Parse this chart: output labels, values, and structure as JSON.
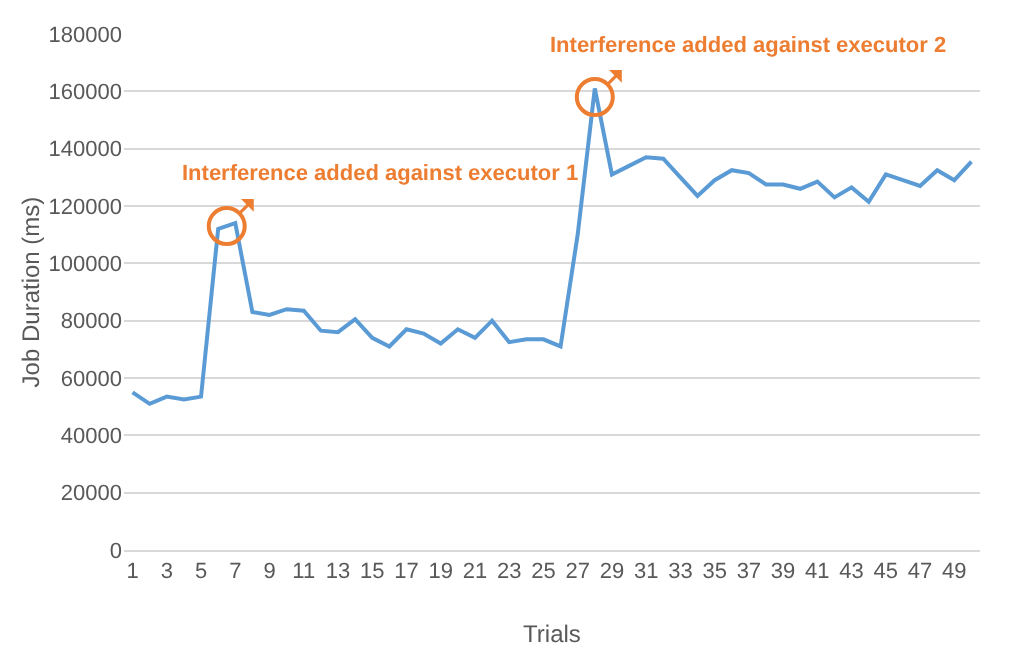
{
  "chart_data": {
    "type": "line",
    "xlabel": "Trials",
    "ylabel": "Job Duration (ms)",
    "x": [
      1,
      2,
      3,
      4,
      5,
      6,
      7,
      8,
      9,
      10,
      11,
      12,
      13,
      14,
      15,
      16,
      17,
      18,
      19,
      20,
      21,
      22,
      23,
      24,
      25,
      26,
      27,
      28,
      29,
      30,
      31,
      32,
      33,
      34,
      35,
      36,
      37,
      38,
      39,
      40,
      41,
      42,
      43,
      44,
      45,
      46,
      47,
      48,
      49,
      50
    ],
    "series": [
      {
        "color": "#5b9bd5",
        "values": [
          55000,
          51000,
          53500,
          52500,
          53500,
          112000,
          114000,
          83000,
          82000,
          84000,
          83500,
          76500,
          76000,
          80500,
          74000,
          71000,
          77000,
          75500,
          72000,
          77000,
          74000,
          80000,
          72500,
          73500,
          73500,
          71000,
          110000,
          161000,
          131000,
          134000,
          137000,
          136500,
          130000,
          123500,
          129000,
          132500,
          131500,
          127500,
          127500,
          126000,
          128500,
          123000,
          126500,
          121500,
          131000,
          129000,
          127000,
          132500,
          129000,
          135500
        ]
      }
    ],
    "xlim": [
      0.5,
      50.5
    ],
    "xticks": [
      1,
      3,
      5,
      7,
      9,
      11,
      13,
      15,
      17,
      19,
      21,
      23,
      25,
      27,
      29,
      31,
      33,
      35,
      37,
      39,
      41,
      43,
      45,
      47,
      49
    ],
    "ylim": [
      0,
      180000
    ],
    "yticks": [
      0,
      20000,
      40000,
      60000,
      80000,
      100000,
      120000,
      140000,
      160000,
      180000
    ],
    "grid": "y",
    "legend": false,
    "marker": "none",
    "line_style": "solid",
    "annotations": [
      {
        "text": "Interference added against executor 1",
        "x": 6.5,
        "y": 113000
      },
      {
        "text": "Interference added against executor 2",
        "x": 28,
        "y": 158000
      }
    ]
  }
}
